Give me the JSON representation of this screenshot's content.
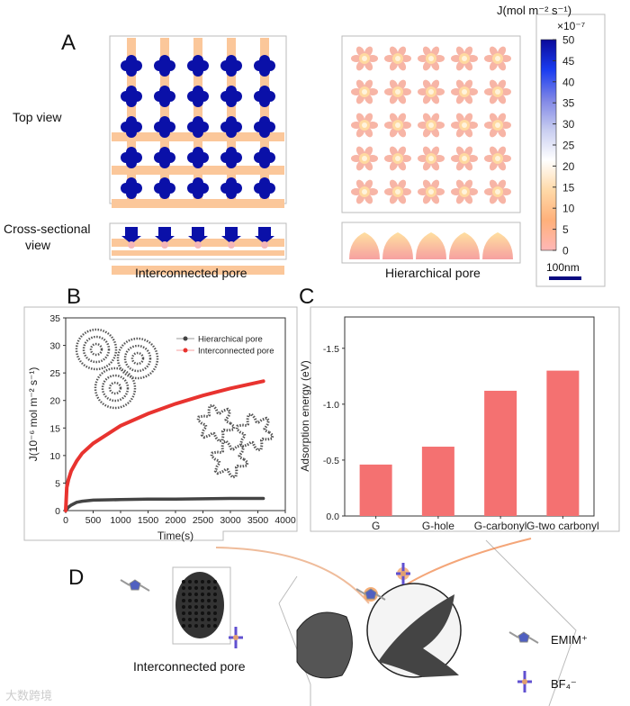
{
  "panel_a": {
    "letter": "A",
    "top_view": "Top view",
    "cross_view_1": "Cross-sectional",
    "cross_view_2": "view",
    "left_caption": "Interconnected pore",
    "right_caption": "Hierarchical pore",
    "colorbar": {
      "title": "J(mol m⁻² s⁻¹)",
      "multiplier": "×10⁻⁷",
      "ticks": [
        "50",
        "45",
        "40",
        "35",
        "30",
        "25",
        "20",
        "15",
        "10",
        "5",
        "0"
      ],
      "scale_label": "100nm",
      "colors": [
        "#0a0a9a",
        "#1a3cf0",
        "#7f86e6",
        "#c8cdf0",
        "#ffffff",
        "#ffd9a8",
        "#ffb07a",
        "#ffb7b7"
      ]
    }
  },
  "panel_b": {
    "letter": "B"
  },
  "panel_c": {
    "letter": "C"
  },
  "panel_d": {
    "letter": "D",
    "caption": "Interconnected pore",
    "legend_cation": "EMIM⁺",
    "legend_anion": "BF₄⁻"
  },
  "watermark": "大数跨境",
  "chart_data": [
    {
      "type": "line",
      "title": "",
      "xlabel": "Time(s)",
      "ylabel": "J(10⁻⁶ mol m⁻² s⁻¹)",
      "xlim": [
        0,
        4000
      ],
      "ylim": [
        0,
        35
      ],
      "xticks": [
        0,
        500,
        1000,
        1500,
        2000,
        2500,
        3000,
        3500,
        4000
      ],
      "yticks": [
        0,
        5,
        10,
        15,
        20,
        25,
        30,
        35
      ],
      "legend_position": "top-right",
      "series": [
        {
          "name": "Hierarchical pore",
          "color": "#444444",
          "x": [
            0,
            50,
            100,
            200,
            300,
            500,
            1000,
            1500,
            2000,
            2500,
            3000,
            3600
          ],
          "y": [
            0,
            0.6,
            1.0,
            1.5,
            1.7,
            1.9,
            2.0,
            2.1,
            2.1,
            2.15,
            2.2,
            2.2
          ]
        },
        {
          "name": "Interconnected pore",
          "color": "#e8332f",
          "x": [
            0,
            20,
            50,
            100,
            200,
            300,
            500,
            1000,
            1500,
            2000,
            2500,
            3000,
            3600
          ],
          "y": [
            0,
            4.2,
            5.6,
            7.2,
            9.0,
            10.4,
            12.2,
            15.4,
            17.6,
            19.4,
            20.9,
            22.2,
            23.5
          ]
        }
      ]
    },
    {
      "type": "bar",
      "title": "",
      "xlabel": "",
      "ylabel": "Adsorption energy (eV)",
      "categories": [
        "G",
        "G-hole",
        "G-carbonyl",
        "G-two carbonyl"
      ],
      "values": [
        -0.46,
        -0.62,
        -1.12,
        -1.3
      ],
      "ylim": [
        0,
        -1.78
      ],
      "yticks": [
        "0.0",
        "-0.5",
        "-1.0",
        "-1.5"
      ],
      "ytick_values": [
        0,
        -0.5,
        -1.0,
        -1.5
      ],
      "color": "#f47171"
    }
  ]
}
